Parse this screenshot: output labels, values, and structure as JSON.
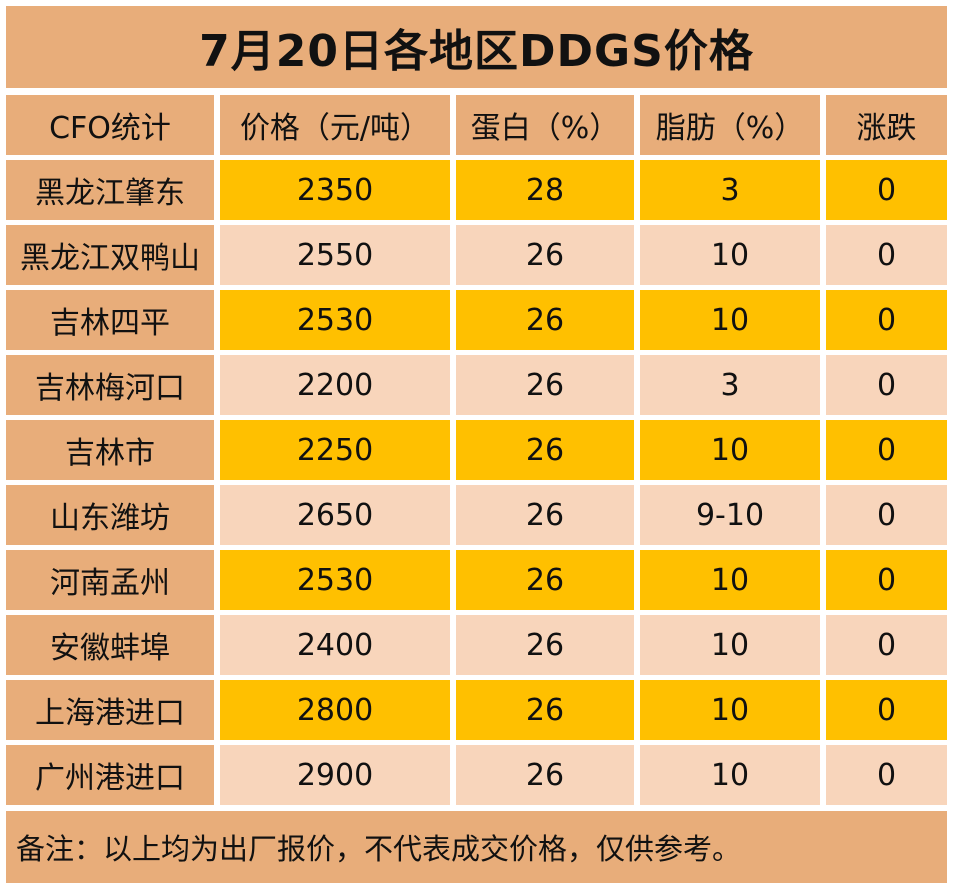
{
  "title": "7月20日各地区DDGS价格",
  "headers": [
    "CFO统计",
    "价格（元/吨）",
    "蛋白（%）",
    "脂肪（%）",
    "涨跌"
  ],
  "rows": [
    {
      "region": "黑龙江肇东",
      "price": "2350",
      "protein": "28",
      "fat": "3",
      "change": "0"
    },
    {
      "region": "黑龙江双鸭山",
      "price": "2550",
      "protein": "26",
      "fat": "10",
      "change": "0"
    },
    {
      "region": "吉林四平",
      "price": "2530",
      "protein": "26",
      "fat": "10",
      "change": "0"
    },
    {
      "region": "吉林梅河口",
      "price": "2200",
      "protein": "26",
      "fat": "3",
      "change": "0"
    },
    {
      "region": "吉林市",
      "price": "2250",
      "protein": "26",
      "fat": "10",
      "change": "0"
    },
    {
      "region": "山东潍坊",
      "price": "2650",
      "protein": "26",
      "fat": "9-10",
      "change": "0"
    },
    {
      "region": "河南孟州",
      "price": "2530",
      "protein": "26",
      "fat": "10",
      "change": "0"
    },
    {
      "region": "安徽蚌埠",
      "price": "2400",
      "protein": "26",
      "fat": "10",
      "change": "0"
    },
    {
      "region": "上海港进口",
      "price": "2800",
      "protein": "26",
      "fat": "10",
      "change": "0"
    },
    {
      "region": "广州港进口",
      "price": "2900",
      "protein": "26",
      "fat": "10",
      "change": "0"
    }
  ],
  "note": "备注：以上均为出厂报价，不代表成交价格，仅供参考。",
  "colors": {
    "header": "#e8ad7a",
    "highlight": "#ffc000",
    "pale": "#f8d5bb"
  }
}
